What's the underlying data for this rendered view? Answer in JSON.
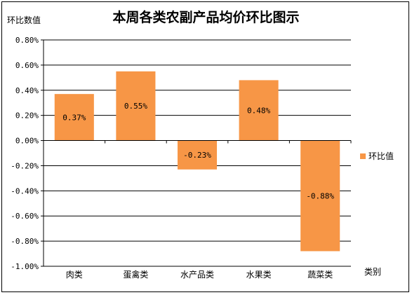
{
  "colors": {
    "bar": "#F79646",
    "grid": "#000000",
    "axis": "#000000"
  },
  "chart_data": {
    "type": "bar",
    "title": "本周各类农副产品均价环比图示",
    "ylabel": "环比数值",
    "xlabel": "类别",
    "categories": [
      "肉类",
      "蛋禽类",
      "水产品类",
      "水果类",
      "蔬菜类"
    ],
    "series": [
      {
        "name": "环比值",
        "values": [
          0.37,
          0.55,
          -0.23,
          0.48,
          -0.88
        ],
        "labels": [
          "0.37%",
          "0.55%",
          "-0.23%",
          "0.48%",
          "-0.88%"
        ]
      }
    ],
    "ylim": [
      -1.0,
      0.8
    ],
    "yticks": [
      0.8,
      0.6,
      0.4,
      0.2,
      0.0,
      -0.2,
      -0.4,
      -0.6,
      -0.8,
      -1.0
    ],
    "ytick_labels": [
      "0.80%",
      "0.60%",
      "0.40%",
      "0.20%",
      "0.00%",
      "-0.20%",
      "-0.40%",
      "-0.60%",
      "-0.80%",
      "-1.00%"
    ],
    "grid": true,
    "legend_position": "right"
  }
}
